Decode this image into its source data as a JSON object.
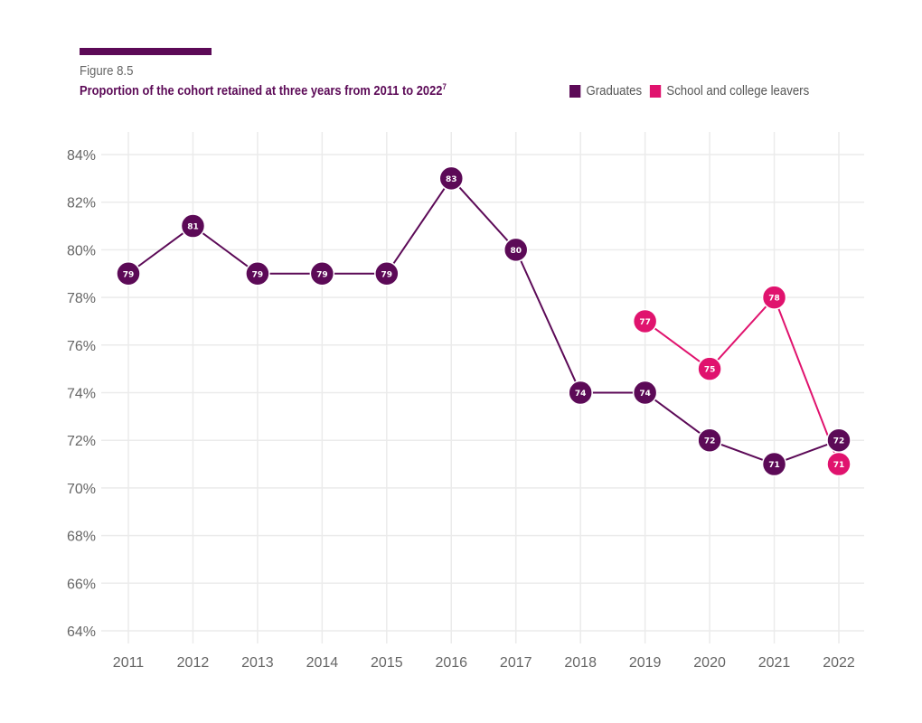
{
  "figure": {
    "label": "Figure 8.5",
    "title": "Proportion of the cohort retained at three years from 2011 to 2022",
    "footnote": "7"
  },
  "chart_data": {
    "type": "line",
    "title": "Proportion of the cohort retained at three years from 2011 to 2022",
    "xlabel": "",
    "ylabel": "",
    "x": [
      "2011",
      "2012",
      "2013",
      "2014",
      "2015",
      "2016",
      "2017",
      "2018",
      "2019",
      "2020",
      "2021",
      "2022"
    ],
    "ylim": [
      64,
      84
    ],
    "yticks": [
      64,
      66,
      68,
      70,
      72,
      74,
      76,
      78,
      80,
      82,
      84
    ],
    "ytick_labels": [
      "64%",
      "66%",
      "68%",
      "70%",
      "72%",
      "74%",
      "76%",
      "78%",
      "80%",
      "82%",
      "84%"
    ],
    "grid": true,
    "legend_position": "top-right",
    "series": [
      {
        "name": "Graduates",
        "color": "#5c0a57",
        "values": [
          79,
          81,
          79,
          79,
          79,
          83,
          80,
          74,
          74,
          72,
          71,
          72
        ],
        "labels": [
          "79",
          "81",
          "79",
          "79",
          "79",
          "83",
          "80",
          "74",
          "74",
          "72",
          "71",
          "72"
        ]
      },
      {
        "name": "School and college leavers",
        "color": "#e0136e",
        "values": [
          null,
          null,
          null,
          null,
          null,
          null,
          null,
          null,
          77,
          75,
          78,
          71
        ],
        "labels": [
          null,
          null,
          null,
          null,
          null,
          null,
          null,
          null,
          "77",
          "75",
          "78",
          "71"
        ]
      }
    ]
  }
}
